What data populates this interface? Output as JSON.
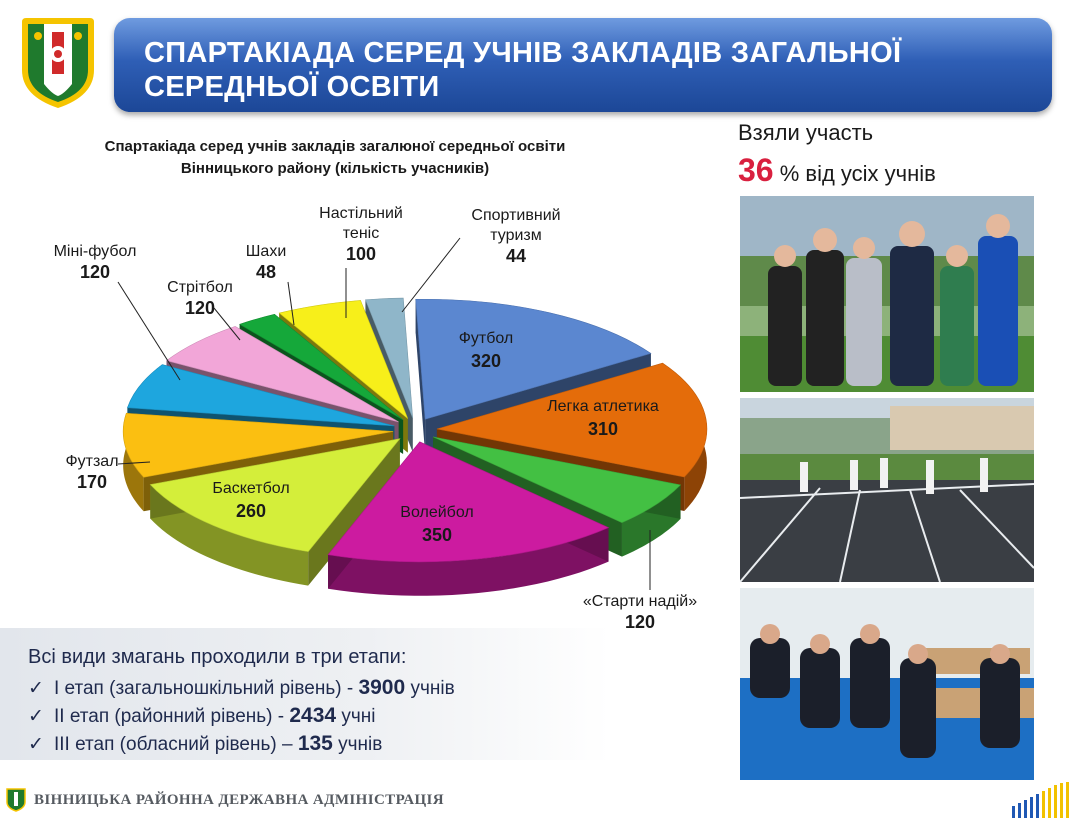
{
  "header": {
    "title": "СПАРТАКІАДА СЕРЕД УЧНІВ ЗАКЛАДІВ ЗАГАЛЬНОЇ СЕРЕДНЬОЇ ОСВІТИ"
  },
  "participation": {
    "label": "Взяли участь",
    "percent": "36",
    "suffix": "% від усіх учнів"
  },
  "stages": {
    "heading": "Всі види змагань проходили в три етапи:",
    "items": [
      {
        "check": "✓",
        "text": "I етап (загальношкільний рівень) - ",
        "value": "3900",
        "unit": " учнів"
      },
      {
        "check": "✓",
        "text": "II етап (районний рівень) - ",
        "value": "2434",
        "unit": " учні"
      },
      {
        "check": "✓",
        "text": "III етап (обласний рівень) – ",
        "value": "135",
        "unit": " учнів"
      }
    ]
  },
  "footer": {
    "text": "ВІННИЦЬКА РАЙОННА ДЕРЖАВНА АДМІНІСТРАЦІЯ"
  },
  "colors": {
    "banner": "#2f5fb6",
    "accent_red": "#d9203f",
    "footer_bars": [
      "#1f58b4",
      "#f2c200"
    ]
  },
  "chart_data": {
    "type": "pie",
    "title": "Спартакіада серед учнів закладів загалюної середньої освіти Вінницького району (кількість учасників)",
    "categories": [
      "Футбол",
      "Легка атлетика",
      "«Старти надій»",
      "Волейбол",
      "Баскетбол",
      "Футзал",
      "Міні-фубол",
      "Стрітбол",
      "Шахи",
      "Настільний теніс",
      "Спортивний туризм"
    ],
    "values": [
      320,
      310,
      120,
      350,
      260,
      170,
      120,
      120,
      48,
      100,
      44
    ],
    "labels": [
      {
        "name": "Футбол",
        "value": "320"
      },
      {
        "name": "Легка атлетика",
        "value": "310"
      },
      {
        "name": "«Старти надій»",
        "value": "120"
      },
      {
        "name": "Волейбол",
        "value": "350"
      },
      {
        "name": "Баскетбол",
        "value": "260"
      },
      {
        "name": "Футзал",
        "value": "170"
      },
      {
        "name": "Міні-фубол",
        "value": "120"
      },
      {
        "name": "Стрітбол",
        "value": "120"
      },
      {
        "name": "Шахи",
        "value": "48"
      },
      {
        "name": "Настільний",
        "name2": "теніс",
        "value": "100"
      },
      {
        "name": "Спортивний",
        "name2": "туризм",
        "value": "44"
      }
    ],
    "colors": [
      "#5b87d0",
      "#e46c0a",
      "#43c043",
      "#cc1ba0",
      "#d4ee3a",
      "#fbbf11",
      "#1ea6de",
      "#f2a6d8",
      "#15a83a",
      "#f7ef1a",
      "#8fb6c9"
    ],
    "legend": "none",
    "style": "exploded 3D"
  }
}
